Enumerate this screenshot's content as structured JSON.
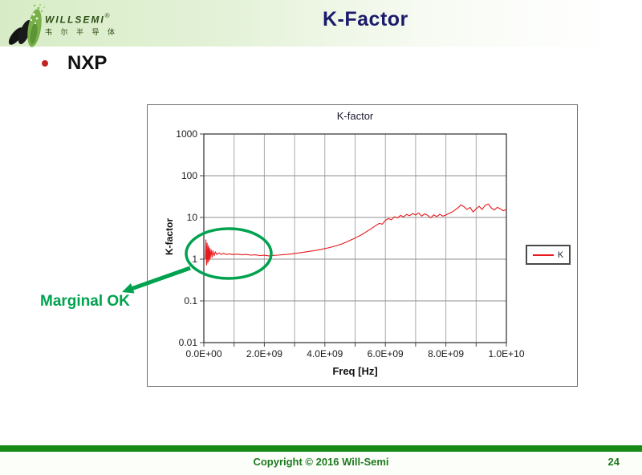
{
  "slide": {
    "logo": {
      "brand": "WILLSEMI",
      "registered": "®",
      "subtitle": "韦 尔 半 导 体"
    },
    "title": "K-Factor",
    "bullet": "NXP",
    "footer": {
      "copyright": "Copyright © 2016 Will-Semi",
      "page": "24"
    }
  },
  "annotation": {
    "label": "Marginal OK",
    "color": "#00a24f"
  },
  "colors": {
    "title_navy": "#1b1b6b",
    "header_green": "#d7ecc6",
    "footer_bar_green": "#168a16",
    "footer_text_green": "#1d7a1d",
    "curve_red": "#e8191c",
    "bullet_red": "#c02424",
    "annotation_green": "#00a24f"
  },
  "chart_data": {
    "type": "line",
    "title": "K-factor",
    "xlabel": "Freq [Hz]",
    "ylabel": "K-factor",
    "x_unit": "GHz",
    "x_range_ghz": [
      0,
      10
    ],
    "y_range": [
      0.01,
      1000
    ],
    "y_scale": "log",
    "grid": true,
    "x_gridline_step_ghz": 1,
    "x_ticks": [
      "0.0E+00",
      "2.0E+09",
      "4.0E+09",
      "6.0E+09",
      "8.0E+09",
      "1.0E+10"
    ],
    "y_ticks": [
      "1000",
      "100",
      "10",
      "1",
      "0.1",
      "0.01"
    ],
    "legend": {
      "position": "right-middle",
      "entries": [
        "K"
      ]
    },
    "series": [
      {
        "name": "K",
        "color": "#e8191c",
        "points_ghz_k": [
          [
            0.05,
            1.0
          ],
          [
            0.07,
            2.9
          ],
          [
            0.09,
            0.72
          ],
          [
            0.11,
            2.4
          ],
          [
            0.13,
            0.8
          ],
          [
            0.15,
            2.1
          ],
          [
            0.17,
            0.9
          ],
          [
            0.19,
            1.85
          ],
          [
            0.21,
            1.0
          ],
          [
            0.24,
            1.7
          ],
          [
            0.27,
            1.1
          ],
          [
            0.3,
            1.6
          ],
          [
            0.34,
            1.2
          ],
          [
            0.38,
            1.5
          ],
          [
            0.43,
            1.28
          ],
          [
            0.5,
            1.42
          ],
          [
            0.57,
            1.3
          ],
          [
            0.65,
            1.38
          ],
          [
            0.75,
            1.3
          ],
          [
            0.85,
            1.34
          ],
          [
            0.95,
            1.29
          ],
          [
            1.1,
            1.32
          ],
          [
            1.25,
            1.27
          ],
          [
            1.4,
            1.3
          ],
          [
            1.55,
            1.25
          ],
          [
            1.7,
            1.27
          ],
          [
            1.85,
            1.22
          ],
          [
            2.0,
            1.24
          ],
          [
            2.15,
            1.2
          ],
          [
            2.3,
            1.23
          ],
          [
            2.45,
            1.25
          ],
          [
            2.6,
            1.28
          ],
          [
            2.75,
            1.3
          ],
          [
            2.9,
            1.34
          ],
          [
            3.05,
            1.38
          ],
          [
            3.2,
            1.43
          ],
          [
            3.35,
            1.48
          ],
          [
            3.5,
            1.54
          ],
          [
            3.65,
            1.6
          ],
          [
            3.8,
            1.68
          ],
          [
            3.95,
            1.76
          ],
          [
            4.1,
            1.86
          ],
          [
            4.25,
            1.98
          ],
          [
            4.4,
            2.12
          ],
          [
            4.55,
            2.3
          ],
          [
            4.7,
            2.55
          ],
          [
            4.85,
            2.85
          ],
          [
            5.0,
            3.2
          ],
          [
            5.1,
            3.5
          ],
          [
            5.2,
            3.8
          ],
          [
            5.3,
            4.2
          ],
          [
            5.4,
            4.7
          ],
          [
            5.5,
            5.2
          ],
          [
            5.6,
            5.8
          ],
          [
            5.7,
            6.5
          ],
          [
            5.8,
            7.2
          ],
          [
            5.9,
            6.9
          ],
          [
            6.0,
            8.5
          ],
          [
            6.1,
            9.4
          ],
          [
            6.2,
            8.8
          ],
          [
            6.3,
            10.4
          ],
          [
            6.4,
            9.7
          ],
          [
            6.5,
            11.2
          ],
          [
            6.6,
            10.3
          ],
          [
            6.7,
            11.8
          ],
          [
            6.8,
            11.0
          ],
          [
            6.9,
            12.4
          ],
          [
            7.0,
            11.4
          ],
          [
            7.1,
            12.8
          ],
          [
            7.2,
            10.8
          ],
          [
            7.3,
            12.2
          ],
          [
            7.4,
            11.2
          ],
          [
            7.5,
            9.8
          ],
          [
            7.6,
            11.5
          ],
          [
            7.7,
            10.5
          ],
          [
            7.8,
            12.0
          ],
          [
            7.9,
            10.8
          ],
          [
            8.0,
            11.4
          ],
          [
            8.1,
            12.5
          ],
          [
            8.2,
            13.4
          ],
          [
            8.3,
            15.0
          ],
          [
            8.4,
            17.0
          ],
          [
            8.5,
            20.0
          ],
          [
            8.6,
            18.0
          ],
          [
            8.7,
            15.5
          ],
          [
            8.8,
            17.5
          ],
          [
            8.9,
            13.5
          ],
          [
            9.0,
            16.0
          ],
          [
            9.1,
            18.5
          ],
          [
            9.2,
            15.5
          ],
          [
            9.3,
            19.5
          ],
          [
            9.4,
            21.0
          ],
          [
            9.5,
            17.0
          ],
          [
            9.6,
            15.0
          ],
          [
            9.7,
            17.5
          ],
          [
            9.8,
            16.0
          ],
          [
            9.9,
            14.5
          ],
          [
            10.0,
            15.5
          ]
        ]
      }
    ]
  }
}
